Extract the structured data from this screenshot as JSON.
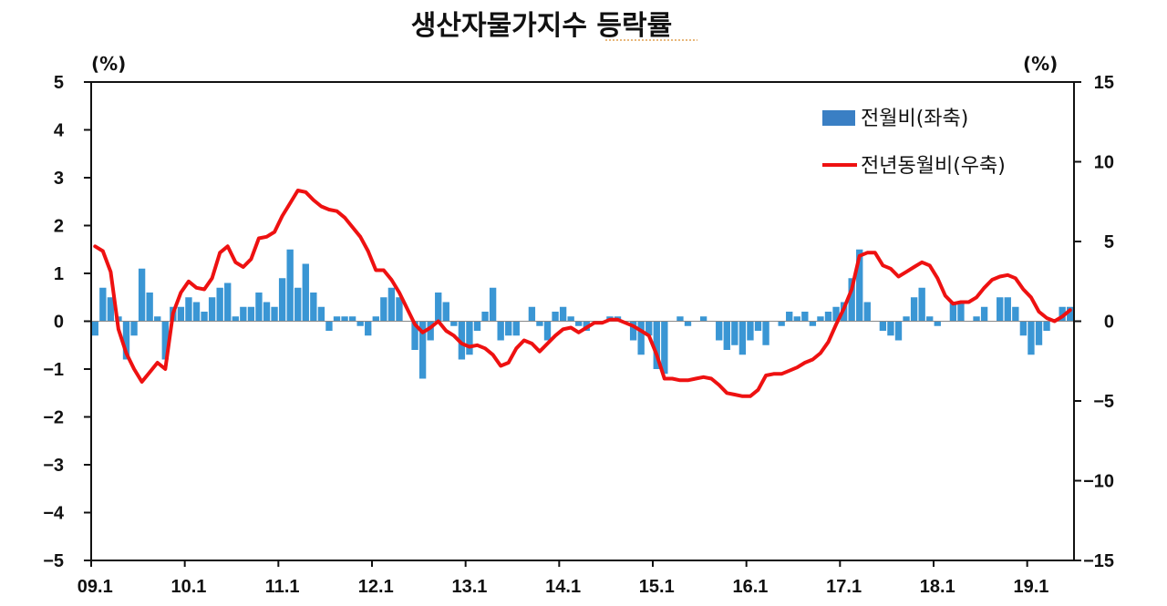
{
  "chart_data": {
    "type": "bar+line",
    "title": "생산자물가지수 등락률",
    "left_axis": {
      "unit": "(%)",
      "ylim": [
        -5,
        5
      ],
      "ticks": [
        "5",
        "4",
        "3",
        "2",
        "1",
        "0",
        "−1",
        "−2",
        "−3",
        "−4",
        "−5"
      ]
    },
    "right_axis": {
      "unit": "(%)",
      "ylim": [
        -15,
        15
      ],
      "ticks": [
        "15",
        "10",
        "5",
        "0",
        "−5",
        "−10",
        "−15"
      ]
    },
    "x_tick_labels": [
      "09.1",
      "10.1",
      "11.1",
      "12.1",
      "13.1",
      "14.1",
      "15.1",
      "16.1",
      "17.1",
      "18.1",
      "19.1"
    ],
    "legend": {
      "placement": "top-right",
      "bar_label": "전월비(좌축)",
      "line_label": "전년동월비(우축)"
    },
    "colors": {
      "bar": "#3a96d4",
      "bar_legend": "#3a7fc4",
      "line": "#ee1111"
    },
    "series": [
      {
        "name": "전월비(좌축)",
        "axis": "left",
        "kind": "bar",
        "values": [
          -0.3,
          0.7,
          0.5,
          0.1,
          -0.8,
          -0.3,
          1.1,
          0.6,
          0.1,
          -0.8,
          0.3,
          0.3,
          0.5,
          0.4,
          0.2,
          0.5,
          0.7,
          0.8,
          0.1,
          0.3,
          0.3,
          0.6,
          0.4,
          0.3,
          0.9,
          1.5,
          0.7,
          1.2,
          0.6,
          0.3,
          -0.2,
          0.1,
          0.1,
          0.1,
          -0.1,
          -0.3,
          0.1,
          0.5,
          0.7,
          0.5,
          0.0,
          -0.6,
          -1.2,
          -0.4,
          0.6,
          0.4,
          -0.1,
          -0.8,
          -0.7,
          -0.2,
          0.2,
          0.7,
          -0.4,
          -0.3,
          -0.3,
          0.0,
          0.3,
          -0.1,
          -0.4,
          0.2,
          0.3,
          0.1,
          -0.1,
          -0.2,
          0.0,
          0.0,
          0.1,
          0.1,
          0.0,
          -0.4,
          -0.7,
          -0.3,
          -1.0,
          -1.1,
          0.0,
          0.1,
          -0.1,
          0.0,
          0.1,
          0.0,
          -0.4,
          -0.6,
          -0.5,
          -0.7,
          -0.4,
          -0.2,
          -0.5,
          0.0,
          -0.1,
          0.2,
          0.1,
          0.2,
          -0.1,
          0.1,
          0.2,
          0.3,
          0.4,
          0.9,
          1.5,
          0.4,
          0.0,
          -0.2,
          -0.3,
          -0.4,
          0.1,
          0.5,
          0.7,
          0.1,
          -0.1,
          0.0,
          0.4,
          0.4,
          0.0,
          0.1,
          0.3,
          0.0,
          0.5,
          0.5,
          0.3,
          -0.3,
          -0.7,
          -0.5,
          -0.2,
          0.0,
          0.3,
          0.3
        ]
      },
      {
        "name": "전년동월비(우축)",
        "axis": "right",
        "kind": "line",
        "values": [
          4.7,
          4.4,
          3.1,
          -0.5,
          -2.0,
          -3.0,
          -3.8,
          -3.2,
          -2.6,
          -3.0,
          0.5,
          1.8,
          2.5,
          2.1,
          2.0,
          2.7,
          4.3,
          4.7,
          3.7,
          3.4,
          3.9,
          5.2,
          5.3,
          5.6,
          6.6,
          7.4,
          8.2,
          8.1,
          7.6,
          7.2,
          7.0,
          6.9,
          6.5,
          5.9,
          5.3,
          4.4,
          3.2,
          3.2,
          2.6,
          1.8,
          0.8,
          -0.2,
          -0.7,
          -0.4,
          0.0,
          -0.6,
          -0.9,
          -1.4,
          -1.6,
          -1.5,
          -1.7,
          -2.1,
          -2.8,
          -2.6,
          -1.7,
          -1.2,
          -1.4,
          -1.9,
          -1.4,
          -0.9,
          -0.5,
          -0.4,
          -0.7,
          -0.4,
          -0.1,
          -0.1,
          0.1,
          0.1,
          -0.1,
          -0.3,
          -0.6,
          -0.9,
          -2.1,
          -3.6,
          -3.6,
          -3.7,
          -3.7,
          -3.6,
          -3.5,
          -3.6,
          -4.0,
          -4.5,
          -4.6,
          -4.7,
          -4.7,
          -4.3,
          -3.4,
          -3.3,
          -3.3,
          -3.1,
          -2.9,
          -2.6,
          -2.4,
          -2.0,
          -1.3,
          -0.2,
          0.8,
          2.0,
          4.1,
          4.3,
          4.3,
          3.5,
          3.3,
          2.8,
          3.1,
          3.4,
          3.7,
          3.5,
          2.7,
          1.6,
          1.1,
          1.2,
          1.2,
          1.5,
          2.1,
          2.6,
          2.8,
          2.9,
          2.7,
          2.0,
          1.5,
          0.6,
          0.2,
          0.0,
          0.3,
          0.7
        ]
      }
    ]
  }
}
